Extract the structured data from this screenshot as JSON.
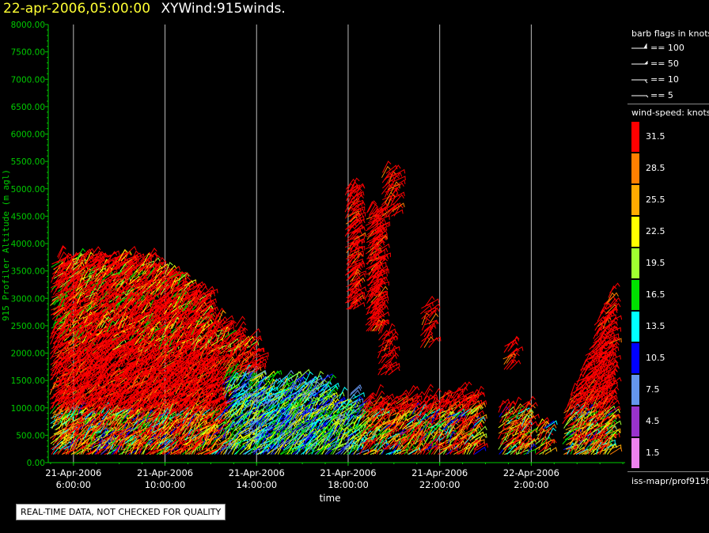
{
  "window": {
    "title_date": "22-apr-2006,05:00:00",
    "title_name": "XYWind:915winds."
  },
  "chart_data": {
    "type": "scatter",
    "title": "22-apr-2006,05:00:00 XYWind:915winds.",
    "xlabel": "time",
    "ylabel": "915 Profiler Altitude (m agl)",
    "ylim": [
      0,
      8000
    ],
    "yticks": [
      "0.00",
      "500.00",
      "1000.00",
      "1500.00",
      "2000.00",
      "2500.00",
      "3000.00",
      "3500.00",
      "4000.00",
      "4500.00",
      "5000.00",
      "5500.00",
      "6000.00",
      "6500.00",
      "7000.00",
      "7500.00",
      "8000.00"
    ],
    "xticks": [
      {
        "date": "21-Apr-2006",
        "time": "6:00:00"
      },
      {
        "date": "21-Apr-2006",
        "time": "10:00:00"
      },
      {
        "date": "21-Apr-2006",
        "time": "14:00:00"
      },
      {
        "date": "21-Apr-2006",
        "time": "18:00:00"
      },
      {
        "date": "21-Apr-2006",
        "time": "22:00:00"
      },
      {
        "date": "22-Apr-2006",
        "time": "2:00:00"
      }
    ],
    "x_range_hours": [
      4.9,
      30.1
    ],
    "grid": "vertical lines at x ticks",
    "series_note": "wind barbs colored by wind speed (knots)"
  },
  "legend": {
    "barb_title": "barb flags in knots",
    "barbs": [
      "== 100",
      "== 50",
      "== 10",
      "== 5"
    ],
    "speed_title": "wind-speed: knots",
    "scale": [
      {
        "label": "31.5",
        "color": "#ff0000"
      },
      {
        "label": "28.5",
        "color": "#ff7f00"
      },
      {
        "label": "25.5",
        "color": "#ffaa00"
      },
      {
        "label": "22.5",
        "color": "#ffff00"
      },
      {
        "label": "19.5",
        "color": "#a0ff30"
      },
      {
        "label": "16.5",
        "color": "#00e000"
      },
      {
        "label": "13.5",
        "color": "#00ffff"
      },
      {
        "label": "10.5",
        "color": "#0000ff"
      },
      {
        "label": "7.5",
        "color": "#6495ed"
      },
      {
        "label": "4.5",
        "color": "#9932cc"
      },
      {
        "label": "1.5",
        "color": "#ee82ee"
      }
    ],
    "source_path": "iss-mapr/prof915h"
  },
  "quality_note": "REAL-TIME DATA, NOT CHECKED FOR QUALITY",
  "colors": {
    "axis": "#00cc00",
    "grid": "#bbbbbb",
    "title_date": "#ffff33"
  }
}
